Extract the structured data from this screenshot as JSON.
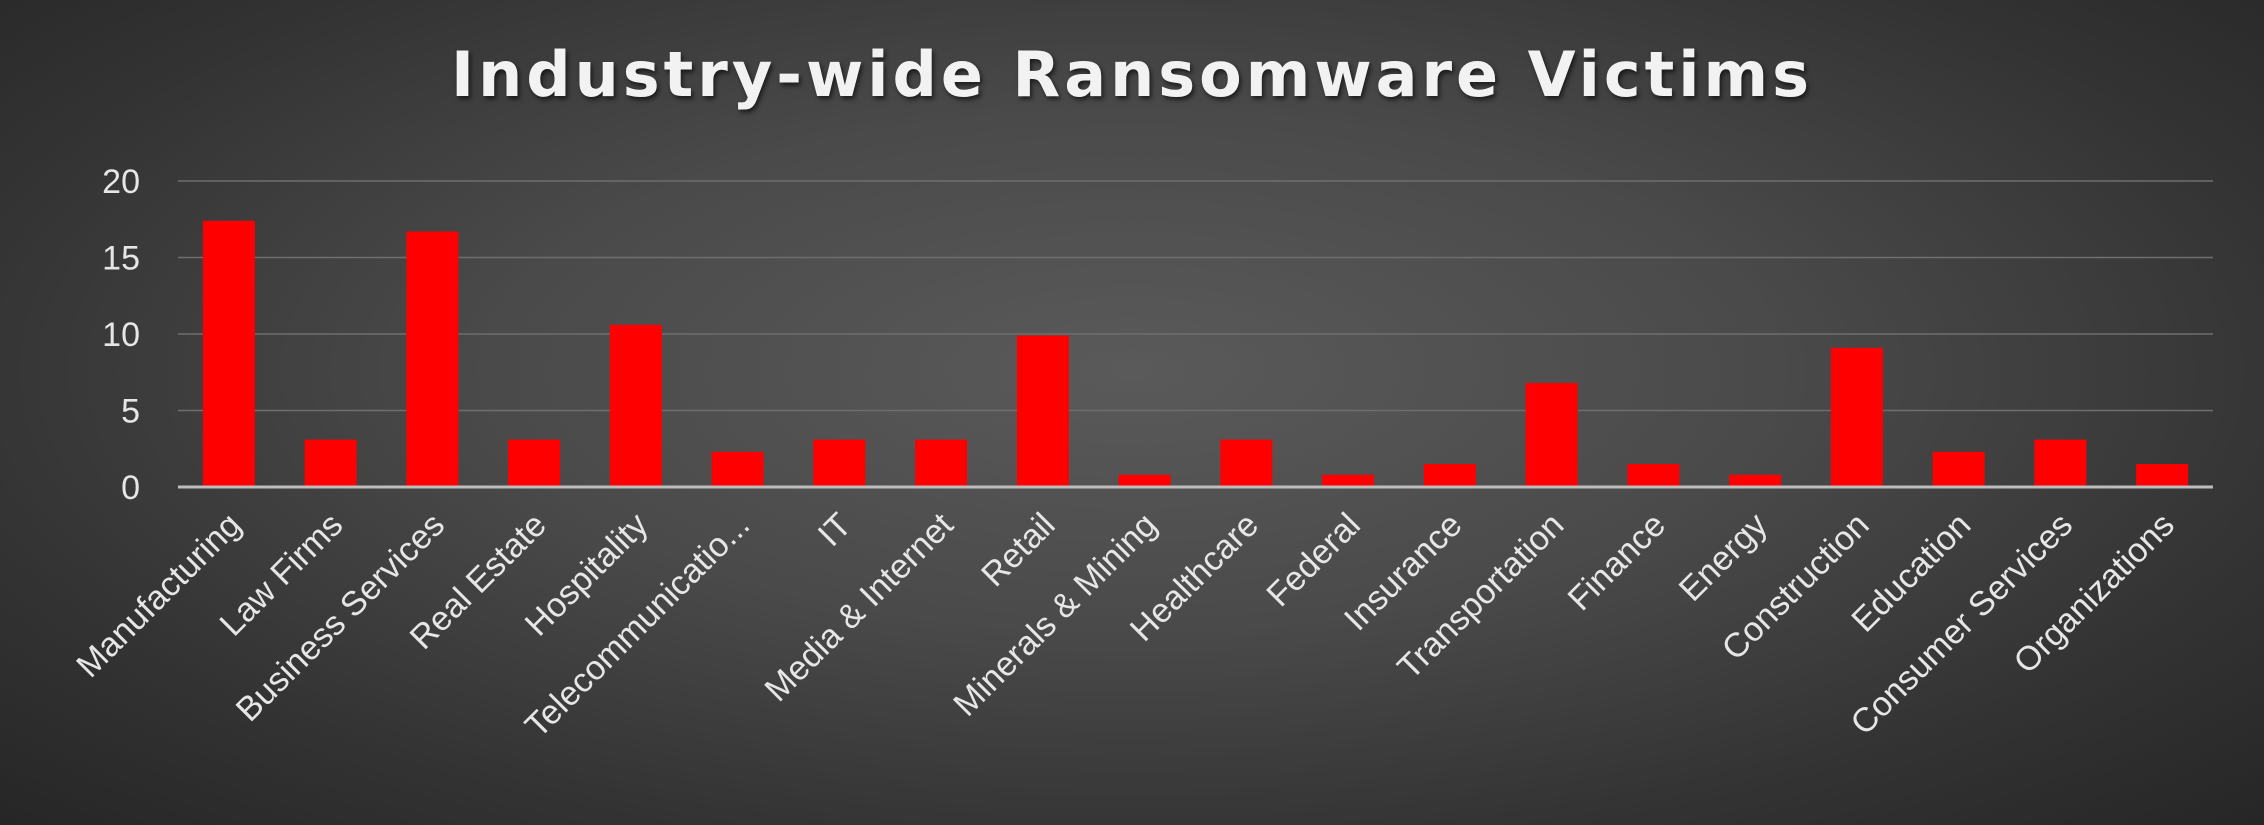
{
  "chart_data": {
    "type": "bar",
    "title": "Industry-wide Ransomware Victims",
    "xlabel": "",
    "ylabel": "",
    "ylim": [
      0,
      20
    ],
    "yticks": [
      "0",
      "5",
      "10",
      "15",
      "20"
    ],
    "grid": true,
    "legend": "none",
    "bar_color": "#ff0000",
    "categories": [
      "Manufacturing",
      "Law Firms",
      "Business Services",
      "Real Estate",
      "Hospitality",
      "Telecommunicatio...",
      "IT",
      "Media & Internet",
      "Retail",
      "Minerals & Mining",
      "Healthcare",
      "Federal",
      "Insurance",
      "Transportation",
      "Finance",
      "Energy",
      "Construction",
      "Education",
      "Consumer Services",
      "Organizations"
    ],
    "values": [
      17.4,
      3.1,
      16.7,
      3.1,
      10.6,
      2.3,
      3.1,
      3.1,
      9.9,
      0.8,
      3.1,
      0.8,
      1.5,
      6.8,
      1.5,
      0.8,
      9.1,
      2.3,
      3.1,
      1.5
    ]
  }
}
